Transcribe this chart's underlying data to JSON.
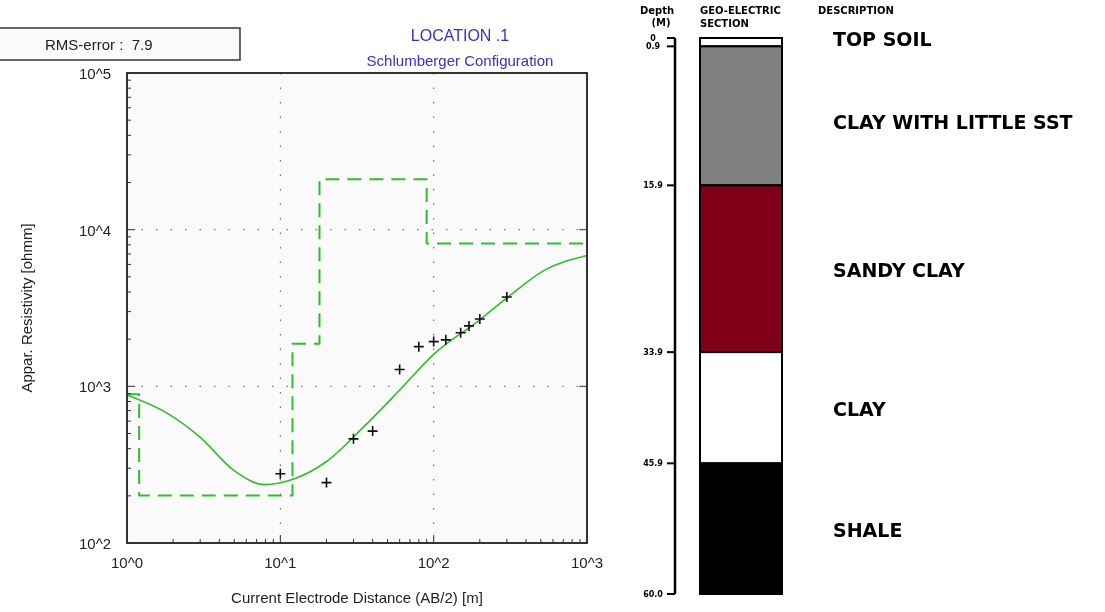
{
  "chart_data": [
    {
      "type": "line",
      "title": "LOCATION .1",
      "subtitle": "Schlumberger Configuration",
      "xlabel": "Current Electrode Distance (AB/2) [m]",
      "ylabel": "Appar. Resistivity [ohmm]",
      "annotations": [
        "RMS-error :  7.9"
      ],
      "log": "xy",
      "grid": true,
      "xlim": [
        1,
        1000
      ],
      "xticks": [
        {
          "value": 1,
          "label": "10^0"
        },
        {
          "value": 10,
          "label": "10^1"
        },
        {
          "value": 100,
          "label": "10^2"
        },
        {
          "value": 1000,
          "label": "10^3"
        }
      ],
      "ylim": [
        100,
        100000
      ],
      "yticks": [
        {
          "value": 100,
          "label": "10^2"
        },
        {
          "value": 1000,
          "label": "10^3"
        },
        {
          "value": 10000,
          "label": "10^4"
        },
        {
          "value": 100000,
          "label": "10^5"
        }
      ],
      "series": [
        {
          "type": "step",
          "color": "#33bb33",
          "line_style": "dashed",
          "x": [
            1,
            1.2,
            12,
            18,
            90,
            1000
          ],
          "values": [
            890,
            201,
            1870,
            21000,
            8150,
            8150
          ]
        },
        {
          "type": "line",
          "color": "#33bb33",
          "line_style": "solid",
          "x": [
            1,
            1.87,
            2.98,
            5,
            7.9,
            12.5,
            19.9,
            35,
            59,
            100,
            199,
            316,
            526,
            1000
          ],
          "values": [
            880,
            665,
            476,
            290,
            236,
            258,
            330,
            551,
            930,
            1600,
            2650,
            3820,
            5500,
            6840
          ]
        },
        {
          "type": "scatter",
          "color": "#111111",
          "marker": "cross",
          "x": [
            10,
            20,
            30,
            40,
            60,
            80,
            100,
            120,
            150,
            170,
            200,
            300
          ],
          "values": [
            277,
            243,
            462,
            518,
            1282,
            1792,
            1930,
            1980,
            2200,
            2430,
            2690,
            3720
          ]
        }
      ]
    },
    {
      "type": "bar",
      "stacked": true,
      "xlabel": "GEO-ELECTRIC SECTION",
      "ylabel": "Depth (M)",
      "legend_title": "DESCRIPTION",
      "categories": [
        null
      ],
      "ylim": [
        60,
        0
      ],
      "yticks": [
        0,
        0.9,
        15.9,
        33.9,
        45.9,
        {
          "value": 60,
          "label": "60.0"
        }
      ],
      "series": [
        {
          "name": "TOP SOIL",
          "color": "#ffffff",
          "values": [
            0.9
          ]
        },
        {
          "name": "CLAY WITH LITTLE SST",
          "color": "#808080",
          "values": [
            15.0
          ]
        },
        {
          "name": "SANDY CLAY",
          "color": "#800018",
          "values": [
            18.0
          ]
        },
        {
          "name": "CLAY",
          "color": "#ffffff",
          "values": [
            12.0
          ]
        },
        {
          "name": "SHALE",
          "color": "#000000",
          "values": [
            14.1
          ]
        }
      ]
    }
  ]
}
